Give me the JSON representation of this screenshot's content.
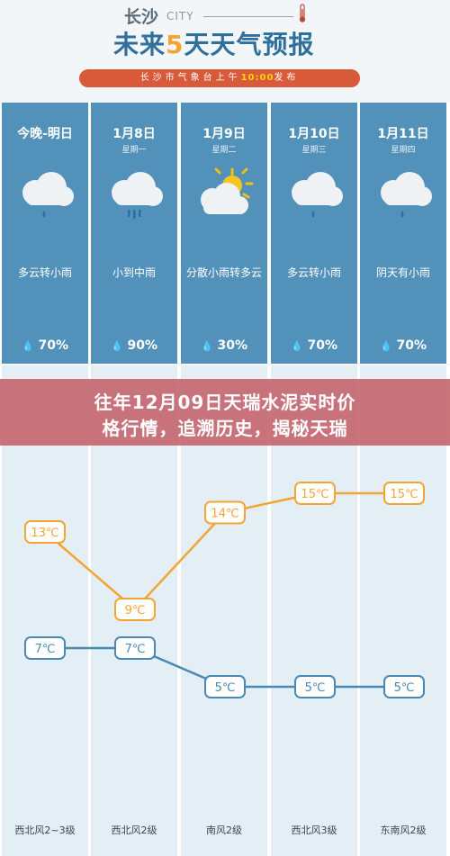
{
  "header": {
    "city": "长沙",
    "city_en": "CITY",
    "title_part1": "未来",
    "title_highlight": "5",
    "title_part2": "天",
    "title_part3": "天气预报",
    "publish_prefix": "长沙市气象台上午",
    "publish_time": "10:00",
    "publish_suffix": "发布"
  },
  "days": [
    {
      "date": "今晚-明日",
      "weekday": "",
      "icon": "cloud-rain-icon",
      "condition": "多云转小雨",
      "precip": "70%",
      "high": "13℃",
      "low": "7℃",
      "wind": "西北风2~3级"
    },
    {
      "date": "1月8日",
      "weekday": "星期一",
      "icon": "cloud-heavy-rain-icon",
      "condition": "小到中雨",
      "precip": "90%",
      "high": "9℃",
      "low": "7℃",
      "wind": "西北风2级"
    },
    {
      "date": "1月9日",
      "weekday": "星期二",
      "icon": "sun-cloud-icon",
      "condition": "分散小雨转多云",
      "precip": "30%",
      "high": "14℃",
      "low": "5℃",
      "wind": "南风2级"
    },
    {
      "date": "1月10日",
      "weekday": "星期三",
      "icon": "cloud-rain-icon",
      "condition": "多云转小雨",
      "precip": "70%",
      "high": "15℃",
      "low": "5℃",
      "wind": "西北风3级"
    },
    {
      "date": "1月11日",
      "weekday": "星期四",
      "icon": "cloud-rain-icon",
      "condition": "阴天有小雨",
      "precip": "70%",
      "high": "15℃",
      "low": "5℃",
      "wind": "东南风2级"
    }
  ],
  "overlay": {
    "line1": "往年12月09日天瑞水泥实时价",
    "line2": "格行情，追溯历史，揭秘天瑞"
  },
  "chart_data": {
    "type": "line",
    "categories": [
      "今晚-明日",
      "1月8日",
      "1月9日",
      "1月10日",
      "1月11日"
    ],
    "series": [
      {
        "values": [
          13,
          9,
          14,
          15,
          15
        ],
        "color": "#f3a533"
      },
      {
        "values": [
          7,
          7,
          5,
          5,
          5
        ],
        "color": "#4a89b3"
      }
    ]
  },
  "colors": {
    "column_top": "#5191ba",
    "column_bottom": "#e4eef5",
    "high_line": "#f3a533",
    "low_line": "#4a89b3",
    "publish_bar": "#d95a3a",
    "overlay": "#c66870"
  }
}
